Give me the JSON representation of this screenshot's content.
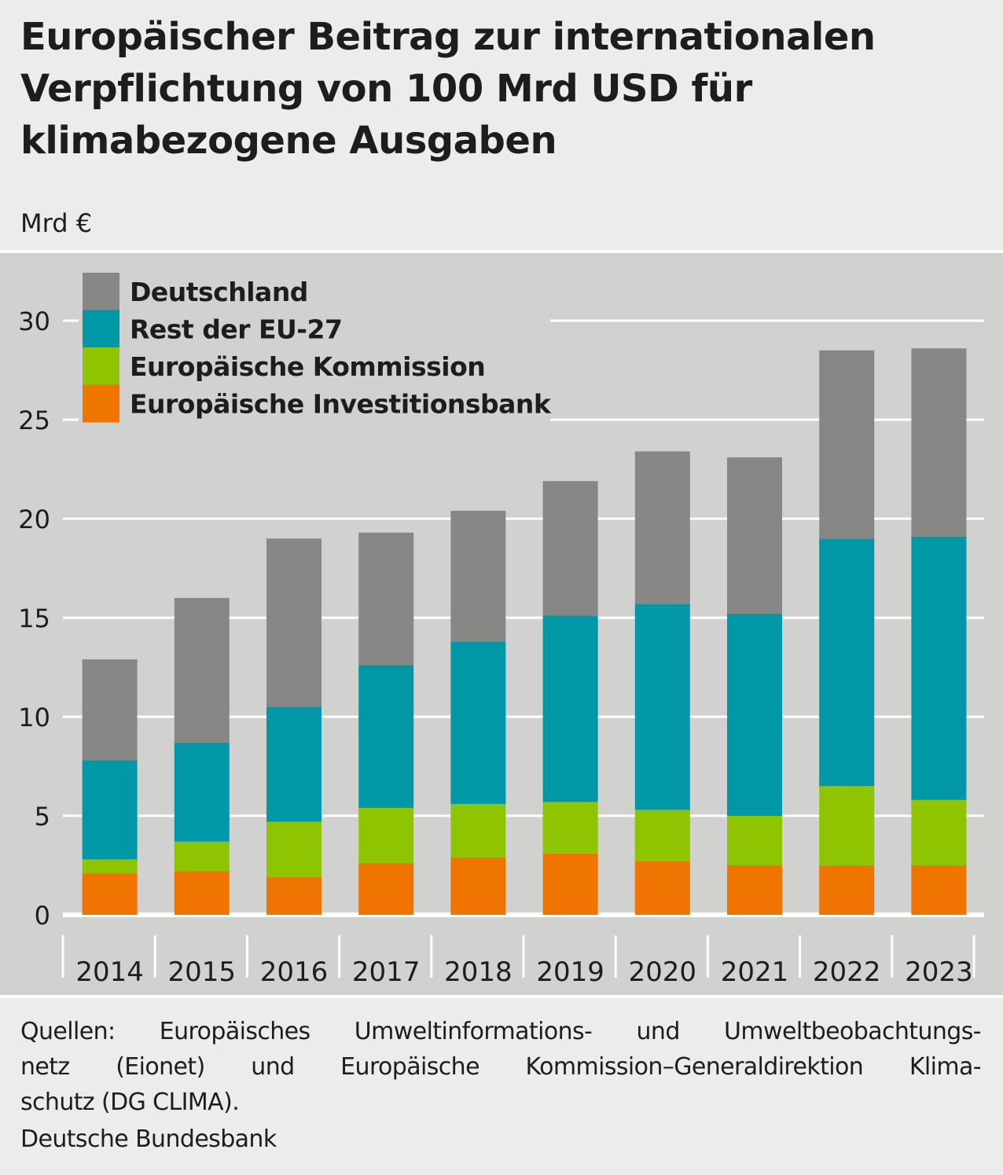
{
  "header": {
    "title": "Europäischer Beitrag zur internationalen Verpflichtung von 100 Mrd USD für klimabezogene Ausgaben",
    "unit": "Mrd €"
  },
  "footer": {
    "sources": "Quellen: Europäisches Umweltinformations- und Umweltbeobachtungs-netz (Eionet) und Europäische Kommission – Generaldirektion Klimaschutz (DG CLIMA).",
    "sources_lines": [
      "Quellen: Europäisches Umweltinformations- und Umweltbeobachtungs-",
      "netz (Eionet) und Europäische Kommission–Generaldirektion Klima-",
      "schutz (DG CLIMA)."
    ],
    "publisher": "Deutsche Bundesbank"
  },
  "chart_data": {
    "type": "bar",
    "stacked": true,
    "title": "Europäischer Beitrag zur internationalen Verpflichtung von 100 Mrd USD für klimabezogene Ausgaben",
    "xlabel": "",
    "ylabel": "Mrd €",
    "ylim": [
      0,
      32
    ],
    "yticks": [
      0,
      5,
      10,
      15,
      20,
      25,
      30
    ],
    "grid": true,
    "legend_position": "top-left",
    "categories": [
      "2014",
      "2015",
      "2016",
      "2017",
      "2018",
      "2019",
      "2020",
      "2021",
      "2022",
      "2023"
    ],
    "series": [
      {
        "name": "Europäische Investitionsbank",
        "color": "#ef7400",
        "values": [
          2.1,
          2.2,
          1.9,
          2.6,
          2.9,
          3.1,
          2.7,
          2.5,
          2.5,
          2.5
        ]
      },
      {
        "name": "Europäische Kommission",
        "color": "#8fc400",
        "values": [
          0.7,
          1.5,
          2.8,
          2.8,
          2.7,
          2.6,
          2.6,
          2.5,
          4.0,
          3.3
        ]
      },
      {
        "name": "Rest der EU-27",
        "color": "#0097a7",
        "values": [
          5.0,
          5.0,
          5.8,
          7.2,
          8.2,
          9.4,
          10.4,
          10.2,
          12.5,
          13.3
        ]
      },
      {
        "name": "Deutschland",
        "color": "#878785",
        "values": [
          5.1,
          7.3,
          8.5,
          6.7,
          6.6,
          6.8,
          7.7,
          7.9,
          9.5,
          9.5
        ]
      }
    ],
    "legend_order": [
      "Deutschland",
      "Rest der EU-27",
      "Europäische Kommission",
      "Europäische Investitionsbank"
    ]
  }
}
